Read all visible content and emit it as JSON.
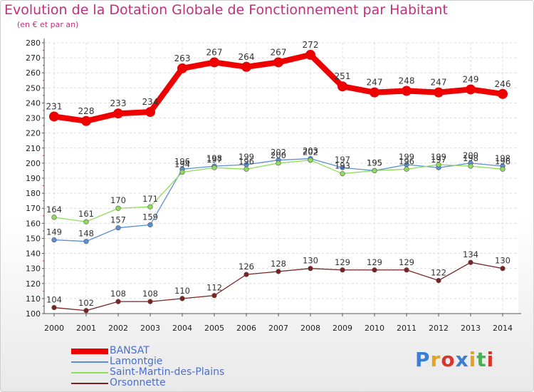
{
  "title": "Evolution de la Dotation Globale de Fonctionnement par Habitant",
  "subtitle": "(en € et par an)",
  "logo": {
    "text": "Proxiti",
    "colors": [
      "#3a7fd5",
      "#e8a21c",
      "#d9362b",
      "#3a7fd5",
      "#e8a21c",
      "#4caf50",
      "#d9362b"
    ]
  },
  "chart_data": {
    "type": "line",
    "title": "Evolution de la Dotation Globale de Fonctionnement par Habitant",
    "subtitle": "(en € et par an)",
    "xlabel": "",
    "ylabel": "",
    "ylim": [
      100,
      280
    ],
    "ytick_step": 10,
    "grid": true,
    "legend_position": "bottom-left",
    "x": [
      "2000",
      "2001",
      "2002",
      "2003",
      "2004",
      "2005",
      "2006",
      "2007",
      "2008",
      "2009",
      "2010",
      "2011",
      "2012",
      "2013",
      "2014"
    ],
    "series": [
      {
        "name": "BANSAT",
        "color": "#ee0000",
        "emphasis": true,
        "values": [
          231,
          228,
          233,
          234,
          263,
          267,
          264,
          267,
          272,
          251,
          247,
          248,
          247,
          249,
          246
        ]
      },
      {
        "name": "Lamontgie",
        "color": "#5b8fd6",
        "values": [
          149,
          148,
          157,
          159,
          196,
          198,
          199,
          202,
          203,
          197,
          195,
          199,
          197,
          200,
          198
        ]
      },
      {
        "name": "Saint-Martin-des-Plains",
        "color": "#8fdc5a",
        "values": [
          164,
          161,
          170,
          171,
          194,
          197,
          196,
          200,
          202,
          193,
          195,
          196,
          199,
          198,
          196
        ]
      },
      {
        "name": "Orsonnette",
        "color": "#7b2222",
        "values": [
          104,
          102,
          108,
          108,
          110,
          112,
          126,
          128,
          130,
          129,
          129,
          129,
          122,
          134,
          130
        ]
      }
    ]
  }
}
